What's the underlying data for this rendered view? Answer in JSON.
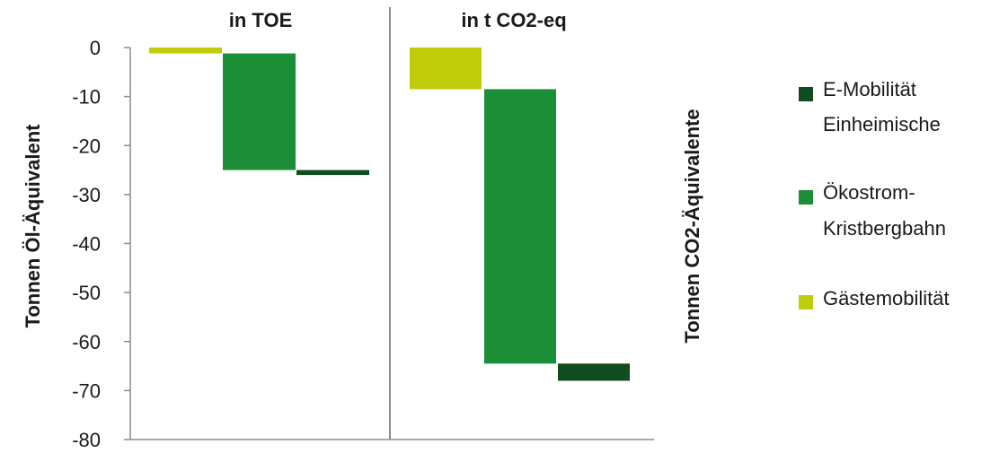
{
  "chart_data": {
    "type": "bar",
    "subtype": "waterfall",
    "ylim": [
      -80,
      0
    ],
    "yticks": [
      0,
      -10,
      -20,
      -30,
      -40,
      -50,
      -60,
      -70,
      -80
    ],
    "ylabel_left": "Tonnen Öl-Äquivalent",
    "ylabel_right": "Tonnen CO2-Äquivalente",
    "grid": false,
    "legend_position": "right",
    "panels": [
      {
        "title": "in TOE",
        "steps": [
          {
            "series": "Gästemobilität",
            "start": 0,
            "end": -1.2
          },
          {
            "series": "Ökostrom-Kristbergbahn",
            "start": -1.2,
            "end": -25
          },
          {
            "series": "E-Mobilität Einheimische",
            "start": -25,
            "end": -26
          }
        ]
      },
      {
        "title": "in t CO2-eq",
        "steps": [
          {
            "series": "Gästemobilität",
            "start": 0,
            "end": -8.5
          },
          {
            "series": "Ökostrom-Kristbergbahn",
            "start": -8.5,
            "end": -64.5
          },
          {
            "series": "E-Mobilität Einheimische",
            "start": -64.5,
            "end": -68
          }
        ]
      }
    ],
    "series": [
      {
        "name": "E-Mobilität Einheimische",
        "lines": [
          "E-Mobilität",
          "Einheimische"
        ],
        "color": "#0f4d1e"
      },
      {
        "name": "Ökostrom-Kristbergbahn",
        "lines": [
          "Ökostrom-",
          "Kristbergbahn"
        ],
        "color": "#1b8e37"
      },
      {
        "name": "Gästemobilität",
        "lines": [
          "Gästemobilität"
        ],
        "color": "#bfcc0a"
      }
    ]
  }
}
